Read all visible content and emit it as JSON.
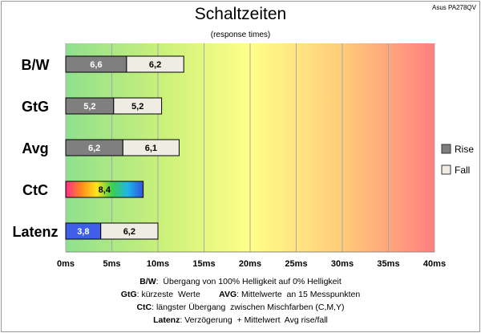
{
  "corner_label": "Asus PA278QV",
  "chart_data": {
    "type": "bar",
    "orientation": "horizontal",
    "stacked": true,
    "title": "Schaltzeiten",
    "subtitle": "(response times)",
    "categories": [
      "B/W",
      "GtG",
      "Avg",
      "CtC",
      "Latenz"
    ],
    "series": [
      {
        "name": "Rise",
        "values": [
          6.6,
          5.2,
          6.2,
          null,
          null
        ],
        "labels": [
          "6,6",
          "5,2",
          "6,2",
          "",
          ""
        ],
        "color": "#7f7f7f"
      },
      {
        "name": "Fall",
        "values": [
          6.2,
          5.2,
          6.1,
          null,
          6.2
        ],
        "labels": [
          "6,2",
          "5,2",
          "6,1",
          "",
          "6,2"
        ],
        "color": "#efede3"
      }
    ],
    "ctc": {
      "value": 8.4,
      "label": "8,4"
    },
    "latency": {
      "value": 3.8,
      "label": "3,8",
      "color": "#3f5fe8"
    },
    "x_ticks": [
      "0ms",
      "5ms",
      "10ms",
      "15ms",
      "20ms",
      "25ms",
      "30ms",
      "35ms",
      "40ms"
    ],
    "xlim": [
      0,
      40
    ],
    "grid": true,
    "legend_position": "right",
    "background_gradient": [
      "#8fe08f",
      "#c8f07a",
      "#ffff88",
      "#ffcc7a",
      "#ff7f7f"
    ]
  },
  "notes": [
    {
      "bold": "B/W",
      "text": ":  Übergang von 100% Helligkeit auf 0% Helligkeit"
    },
    {
      "bold": "GtG",
      "text": ": kürzeste  Werte",
      "bold2": "AVG",
      "text2": ": Mittelwerte  an 15 Messpunkten"
    },
    {
      "bold": "CtC",
      "text": ": längster Übergang  zwischen Mischfarben (C,M,Y)"
    },
    {
      "bold": "Latenz",
      "text": ": Verzögerung  + Mittelwert  Avg rise/fall"
    }
  ]
}
